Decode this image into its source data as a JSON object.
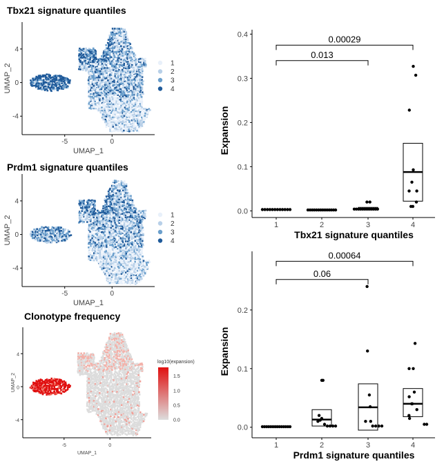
{
  "chart_data": [
    {
      "type": "scatter",
      "title": "Tbx21 signature quantiles",
      "xlabel": "UMAP_1",
      "ylabel": "UMAP_2",
      "xticks": [
        -5,
        0
      ],
      "yticks": [
        4,
        0,
        -4
      ],
      "xlim": [
        -9.5,
        4.5
      ],
      "ylim": [
        -6.2,
        7.2
      ],
      "legend": {
        "position": "right",
        "labels": [
          "1",
          "2",
          "3",
          "4"
        ],
        "colors": [
          "#e8f0fa",
          "#b8d0e8",
          "#6b9fcc",
          "#1f5a9a"
        ]
      },
      "grid": false
    },
    {
      "type": "scatter",
      "title": "Prdm1 signature quantiles",
      "xlabel": "UMAP_1",
      "ylabel": "UMAP_2",
      "xticks": [
        -5,
        0
      ],
      "yticks": [
        4,
        0,
        -4
      ],
      "xlim": [
        -9.5,
        4.5
      ],
      "ylim": [
        -6.2,
        7.2
      ],
      "legend": {
        "position": "right",
        "labels": [
          "1",
          "2",
          "3",
          "4"
        ],
        "colors": [
          "#e8f0fa",
          "#b8d0e8",
          "#6b9fcc",
          "#1f5a9a"
        ]
      },
      "grid": false
    },
    {
      "type": "scatter",
      "title": "Clonotype frequency",
      "xlabel": "UMAP_1",
      "ylabel": "UMAP_2",
      "xticks": [
        -5,
        0
      ],
      "yticks": [
        4,
        0,
        -4
      ],
      "xlim": [
        -9.5,
        4.5
      ],
      "ylim": [
        -6.2,
        7.2
      ],
      "colorbar": {
        "title": "log10(expansion)",
        "ticks": [
          "1.5",
          "1.0",
          "0.5",
          "0.0"
        ],
        "low": "#dddddd",
        "high": "#e01010",
        "range": [
          0,
          1.8
        ]
      },
      "grid": false
    },
    {
      "type": "box",
      "xlabel": "Tbx21 signature quantiles",
      "ylabel": "Expansion",
      "categories": [
        "1",
        "2",
        "3",
        "4"
      ],
      "yticks": [
        "0.0",
        "0.1",
        "0.2",
        "0.3",
        "0.4"
      ],
      "ylim": [
        -0.015,
        0.41
      ],
      "points": [
        [
          0.003,
          0.003,
          0.003,
          0.003,
          0.003,
          0.003,
          0.003,
          0.003,
          0.003,
          0.003,
          0.003,
          0.003
        ],
        [
          0.002,
          0.002,
          0.002,
          0.002,
          0.002,
          0.002,
          0.002,
          0.002,
          0.002,
          0.002,
          0.002,
          0.002,
          0.002,
          0.002
        ],
        [
          0.004,
          0.004,
          0.004,
          0.004,
          0.004,
          0.004,
          0.004,
          0.004,
          0.004,
          0.004,
          0.004,
          0.004,
          0.02,
          0.02
        ],
        [
          0.327,
          0.307,
          0.228,
          0.093,
          0.065,
          0.045,
          0.045,
          0.02,
          0.01,
          0.01
        ]
      ],
      "boxes": [
        {
          "q1": 0.002,
          "median": 0.003,
          "q3": 0.004
        },
        {
          "q1": 0.001,
          "median": 0.002,
          "q3": 0.003
        },
        {
          "q1": 0.002,
          "median": 0.005,
          "q3": 0.008
        },
        {
          "q1": 0.022,
          "median": 0.088,
          "q3": 0.153
        }
      ],
      "comparisons": [
        {
          "from": 1,
          "to": 4,
          "y": 0.375,
          "label": "0.00029"
        },
        {
          "from": 1,
          "to": 3,
          "y": 0.34,
          "label": "0.013"
        }
      ]
    },
    {
      "type": "box",
      "xlabel": "Prdm1 signature quantiles",
      "ylabel": "Expansion",
      "categories": [
        "1",
        "2",
        "3",
        "4"
      ],
      "yticks": [
        "0.0",
        "0.1",
        "0.2"
      ],
      "ylim": [
        -0.018,
        0.3
      ],
      "points": [
        [
          0.001,
          0.001,
          0.001,
          0.001,
          0.001,
          0.001,
          0.001,
          0.001,
          0.001,
          0.001,
          0.001,
          0.001,
          0.001,
          0.001
        ],
        [
          0.08,
          0.08,
          0.02,
          0.015,
          0.012,
          0.01,
          0.005,
          0.002,
          0.002,
          0.002,
          0.002
        ],
        [
          0.24,
          0.13,
          0.055,
          0.035,
          0.01,
          0.01,
          0.002,
          0.002,
          0.002,
          0.002
        ],
        [
          0.143,
          0.1,
          0.1,
          0.06,
          0.052,
          0.04,
          0.04,
          0.03,
          0.02,
          0.015,
          0.005,
          0.005
        ]
      ],
      "boxes": [
        {
          "q1": 0.0,
          "median": 0.001,
          "q3": 0.002
        },
        {
          "q1": 0.002,
          "median": 0.013,
          "q3": 0.03
        },
        {
          "q1": -0.005,
          "median": 0.034,
          "q3": 0.074
        },
        {
          "q1": 0.018,
          "median": 0.04,
          "q3": 0.066
        }
      ],
      "comparisons": [
        {
          "from": 1,
          "to": 4,
          "y": 0.283,
          "label": "0.00064"
        },
        {
          "from": 1,
          "to": 3,
          "y": 0.252,
          "label": "0.06"
        }
      ]
    }
  ]
}
